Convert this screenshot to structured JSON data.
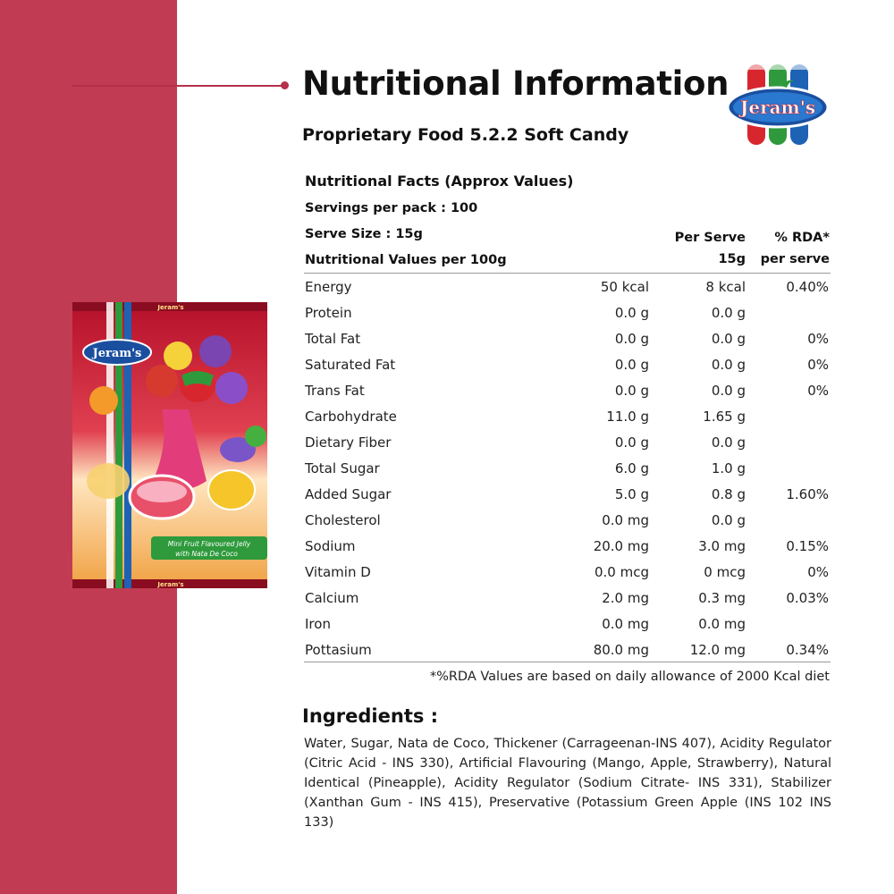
{
  "header": {
    "title": "Nutritional Information",
    "subtitle": "Proprietary Food 5.2.2 Soft Candy",
    "brand": "Jeram's"
  },
  "facts": {
    "heading": "Nutritional  Facts (Approx Values)",
    "servings": "Servings  per pack : 100",
    "serve_size": "Serve Size : 15g",
    "values_label": "Nutritional  Values per 100g",
    "col_serve_line1": "Per Serve",
    "col_serve_line2": "15g",
    "col_rda_line1": "% RDA*",
    "col_rda_line2": "per serve",
    "rows": [
      {
        "name": "Energy",
        "per100": "50 kcal",
        "perServe": "8 kcal",
        "rda": "0.40%"
      },
      {
        "name": "Protein",
        "per100": "0.0 g",
        "perServe": "0.0 g",
        "rda": ""
      },
      {
        "name": "Total  Fat",
        "per100": "0.0 g",
        "perServe": "0.0 g",
        "rda": "0%"
      },
      {
        "name": "Saturated  Fat",
        "per100": "0.0 g",
        "perServe": "0.0 g",
        "rda": "0%"
      },
      {
        "name": "Trans  Fat",
        "per100": "0.0 g",
        "perServe": "0.0 g",
        "rda": "0%"
      },
      {
        "name": "Carbohydrate",
        "per100": "11.0 g",
        "perServe": "1.65 g",
        "rda": ""
      },
      {
        "name": "Dietary  Fiber",
        "per100": "0.0 g",
        "perServe": "0.0 g",
        "rda": ""
      },
      {
        "name": "Total Sugar",
        "per100": "6.0 g",
        "perServe": "1.0 g",
        "rda": ""
      },
      {
        "name": "Added Sugar",
        "per100": "5.0 g",
        "perServe": "0.8 g",
        "rda": "1.60%"
      },
      {
        "name": "Cholesterol",
        "per100": "0.0 mg",
        "perServe": "0.0 g",
        "rda": ""
      },
      {
        "name": "Sodium",
        "per100": "20.0 mg",
        "perServe": "3.0 mg",
        "rda": "0.15%"
      },
      {
        "name": "Vitamin D",
        "per100": "0.0 mcg",
        "perServe": "0 mcg",
        "rda": "0%"
      },
      {
        "name": "Calcium",
        "per100": "2.0 mg",
        "perServe": "0.3 mg",
        "rda": "0.03%"
      },
      {
        "name": "Iron",
        "per100": "0.0 mg",
        "perServe": "0.0 mg",
        "rda": ""
      },
      {
        "name": "Pottasium",
        "per100": "80.0 mg",
        "perServe": "12.0 mg",
        "rda": "0.34%"
      }
    ],
    "footnote": "*%RDA Values are based on daily allowance of 2000 Kcal diet"
  },
  "ingredients": {
    "title": "Ingredients :",
    "text": "Water, Sugar, Nata de Coco, Thickener (Carrageenan-INS 407), Acidity Regulator (Citric Acid - INS 330), Artificial Flavouring (Mango, Apple, Strawberry), Natural Identical (Pineapple), Acidity Regulator (Sodium Citrate- INS 331), Stabilizer (Xanthan Gum - INS 415), Preservative (Potassium Green Apple (INS 102 INS 133)"
  },
  "pack": {
    "brand": "Jeram's",
    "tagline_1": "Mini Fruit Flavoured Jelly",
    "tagline_2": "with Nata De Coco"
  },
  "colors": {
    "band": "#c13c52",
    "accent": "#b5304a",
    "rule": "#999999"
  }
}
